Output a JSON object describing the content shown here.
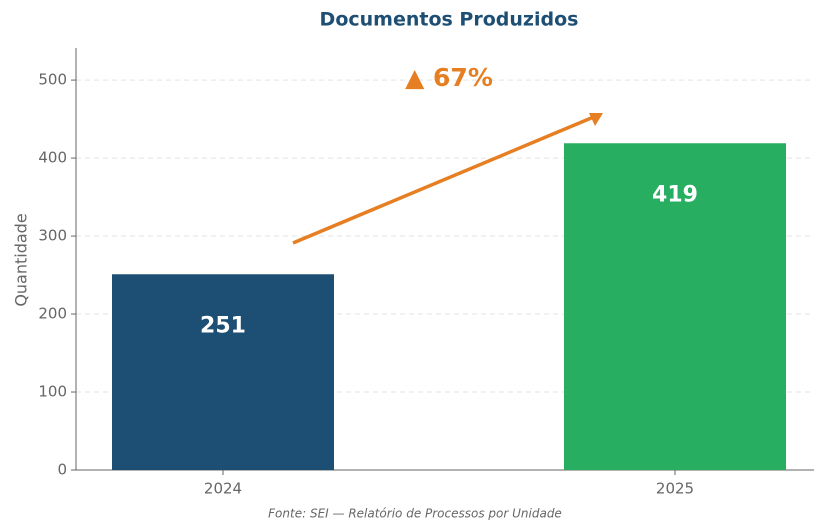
{
  "chart_data": {
    "type": "bar",
    "title": "Documentos Produzidos",
    "y_label": "Quantidade",
    "categories": [
      "2024",
      "2025"
    ],
    "values": [
      251,
      419
    ],
    "colors": [
      "#1d4e73",
      "#27ae60"
    ],
    "ylim": [
      0,
      545
    ],
    "yticks": [
      0,
      100,
      200,
      300,
      400,
      500
    ],
    "grid": true,
    "annotation": "▲ 67%",
    "annotation_color": "#e67e22",
    "source": "Fonte: SEI — Relatório de Processos por Unidade"
  }
}
